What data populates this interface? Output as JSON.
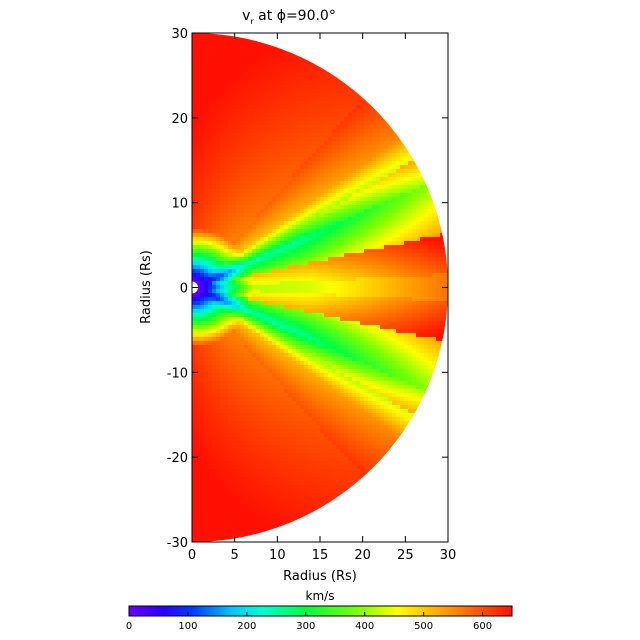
{
  "chart_data": {
    "type": "heatmap",
    "title": "v",
    "title_sub": "r",
    "title_rest": " at ϕ=90.0°",
    "xlabel": "Radius (Rs)",
    "ylabel": "Radius (Rs)",
    "xlim": [
      0,
      30
    ],
    "ylim": [
      -30,
      30
    ],
    "xticks": [
      "0",
      "5",
      "10",
      "15",
      "20",
      "25",
      "30"
    ],
    "yticks": [
      "30",
      "20",
      "10",
      "0",
      "-10",
      "-20",
      "-30"
    ],
    "colorbar": {
      "label": "km/s",
      "range": [
        0,
        650
      ],
      "ticks": [
        "0",
        "100",
        "200",
        "300",
        "400",
        "500",
        "600"
      ]
    },
    "domain": "half-disk, r from 1 to 30 Rs, right half-plane",
    "colors": {
      "low": "#6a00ff",
      "mid": "#00ff40",
      "high": "#ff2000"
    }
  }
}
